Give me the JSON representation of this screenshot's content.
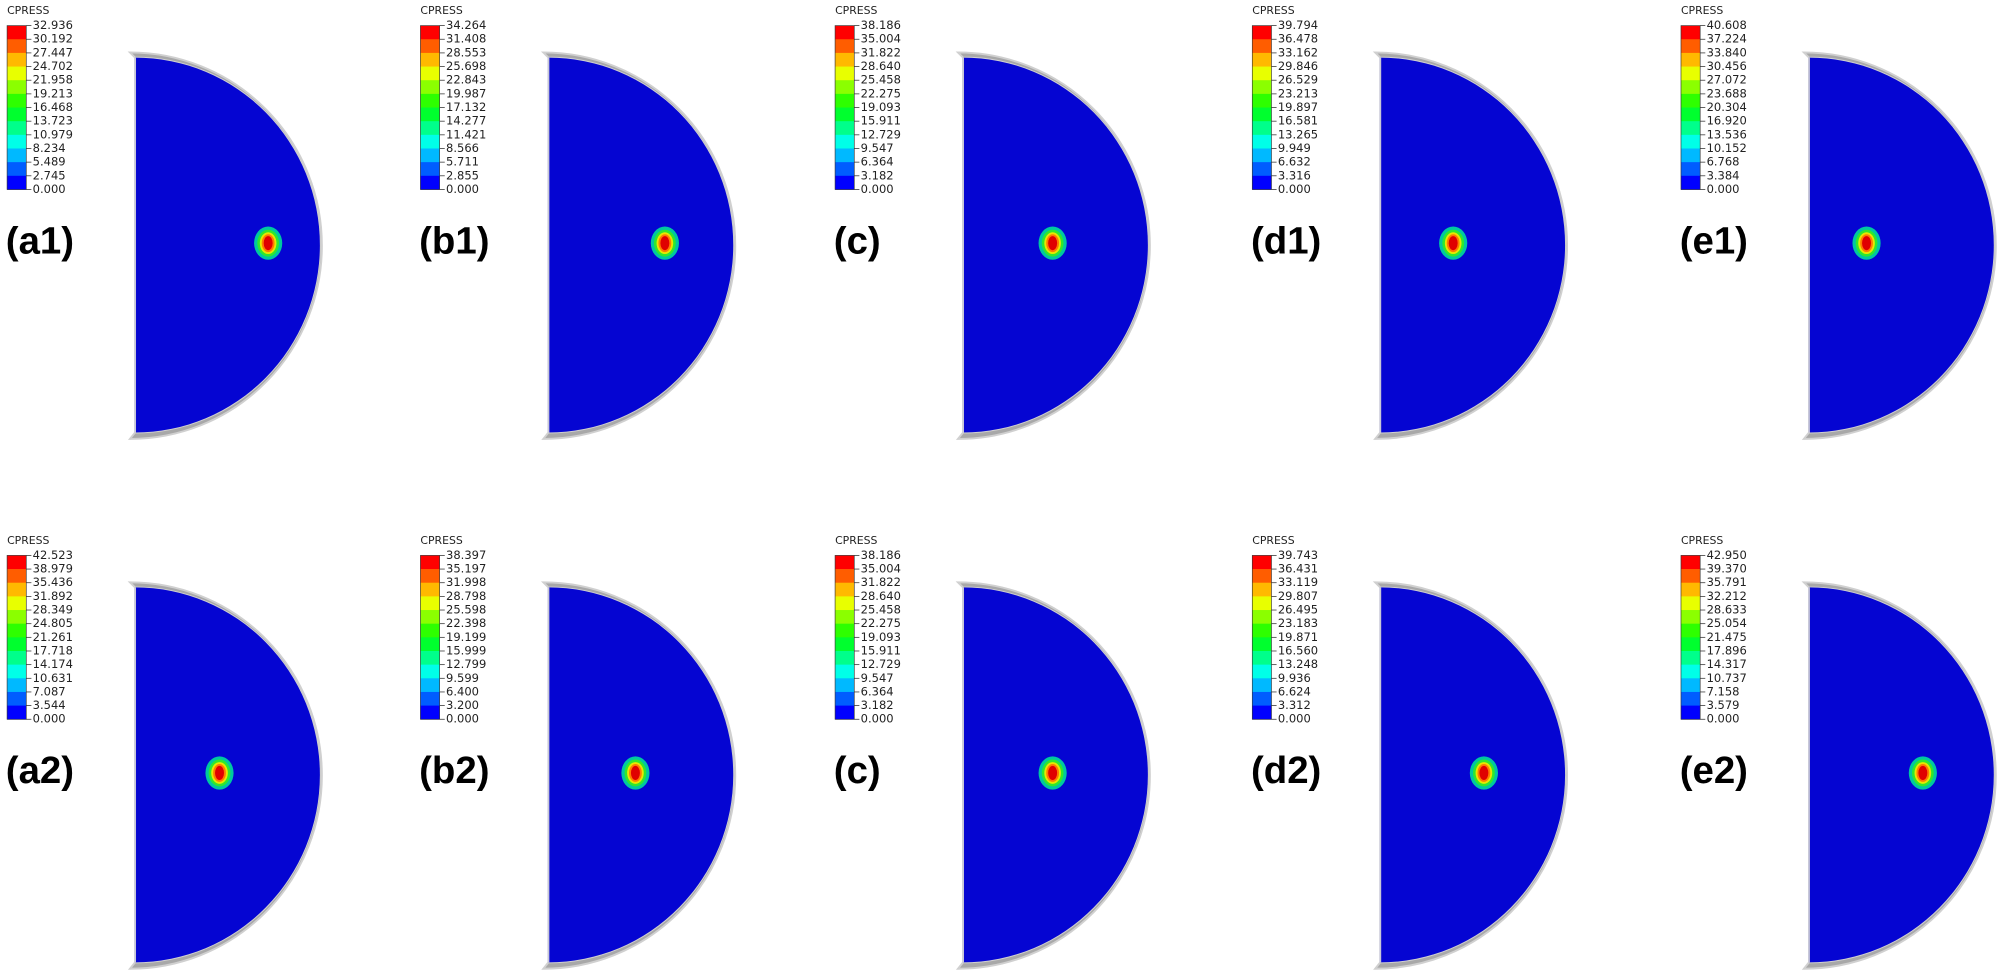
{
  "panels": [
    {
      "legend_title": "CPRESS",
      "label": "(a1)",
      "legend_values": [
        "32.936",
        "30.192",
        "27.447",
        "24.702",
        "21.958",
        "19.213",
        "16.468",
        "13.723",
        "10.979",
        "8.234",
        "5.489",
        "2.745",
        "0.000"
      ]
    },
    {
      "legend_title": "CPRESS",
      "label": "(b1)",
      "legend_values": [
        "34.264",
        "31.408",
        "28.553",
        "25.698",
        "22.843",
        "19.987",
        "17.132",
        "14.277",
        "11.421",
        "8.566",
        "5.711",
        "2.855",
        "0.000"
      ]
    },
    {
      "legend_title": "CPRESS",
      "label": "(c)",
      "legend_values": [
        "38.186",
        "35.004",
        "31.822",
        "28.640",
        "25.458",
        "22.275",
        "19.093",
        "15.911",
        "12.729",
        "9.547",
        "6.364",
        "3.182",
        "0.000"
      ]
    },
    {
      "legend_title": "CPRESS",
      "label": "(d1)",
      "legend_values": [
        "39.794",
        "36.478",
        "33.162",
        "29.846",
        "26.529",
        "23.213",
        "19.897",
        "16.581",
        "13.265",
        "9.949",
        "6.632",
        "3.316",
        "0.000"
      ]
    },
    {
      "legend_title": "CPRESS",
      "label": "(e1)",
      "legend_values": [
        "40.608",
        "37.224",
        "33.840",
        "30.456",
        "27.072",
        "23.688",
        "20.304",
        "16.920",
        "13.536",
        "10.152",
        "6.768",
        "3.384",
        "0.000"
      ]
    },
    {
      "legend_title": "CPRESS",
      "label": "(a2)",
      "legend_values": [
        "42.523",
        "38.979",
        "35.436",
        "31.892",
        "28.349",
        "24.805",
        "21.261",
        "17.718",
        "14.174",
        "10.631",
        "7.087",
        "3.544",
        "0.000"
      ]
    },
    {
      "legend_title": "CPRESS",
      "label": "(b2)",
      "legend_values": [
        "38.397",
        "35.197",
        "31.998",
        "28.798",
        "25.598",
        "22.398",
        "19.199",
        "15.999",
        "12.799",
        "9.599",
        "6.400",
        "3.200",
        "0.000"
      ]
    },
    {
      "legend_title": "CPRESS",
      "label": "(c)",
      "legend_values": [
        "38.186",
        "35.004",
        "31.822",
        "28.640",
        "25.458",
        "22.275",
        "19.093",
        "15.911",
        "12.729",
        "9.547",
        "6.364",
        "3.182",
        "0.000"
      ]
    },
    {
      "legend_title": "CPRESS",
      "label": "(d2)",
      "legend_values": [
        "39.743",
        "36.431",
        "33.119",
        "29.807",
        "26.495",
        "23.183",
        "19.871",
        "16.560",
        "13.248",
        "9.936",
        "6.624",
        "3.312",
        "0.000"
      ]
    },
    {
      "legend_title": "CPRESS",
      "label": "(e2)",
      "legend_values": [
        "42.950",
        "39.370",
        "35.791",
        "32.212",
        "28.633",
        "25.054",
        "21.475",
        "17.896",
        "14.317",
        "10.737",
        "7.158",
        "3.579",
        "0.000"
      ]
    }
  ]
}
